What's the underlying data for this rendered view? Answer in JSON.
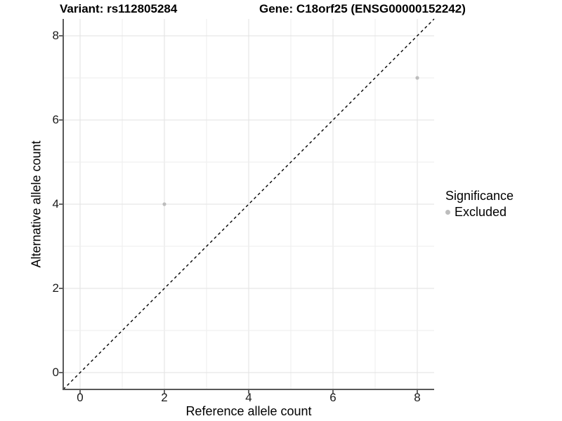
{
  "chart_data": {
    "type": "scatter",
    "title_left": "Variant: rs112805284",
    "title_right": "Gene: C18orf25 (ENSG00000152242)",
    "xlabel": "Reference allele count",
    "ylabel": "Alternative allele count",
    "xlim": [
      -0.4,
      8.4
    ],
    "ylim": [
      -0.4,
      8.4
    ],
    "xticks": [
      0,
      2,
      4,
      6,
      8
    ],
    "yticks": [
      0,
      2,
      4,
      6,
      8
    ],
    "grid": {
      "show": true,
      "minor_every": 1,
      "major_every": 2,
      "legend_position": "right"
    },
    "series": [
      {
        "name": "Excluded",
        "color": "#bdbdbd",
        "points": [
          [
            2,
            4
          ],
          [
            8,
            7
          ]
        ]
      }
    ],
    "reference_line": {
      "kind": "identity y = x",
      "style": "dashed",
      "color": "#000000"
    },
    "legend": {
      "title": "Significance",
      "items": [
        {
          "label": "Excluded",
          "color": "#bdbdbd"
        }
      ]
    }
  },
  "style": {
    "point_color": "#bdbdbd",
    "grid_major_color": "#e2e2e2",
    "grid_minor_color": "#ededed",
    "axis_line_color": "#595959",
    "tick_mark_color": "#333333",
    "identity_line_color": "#000000",
    "background": "#ffffff"
  }
}
